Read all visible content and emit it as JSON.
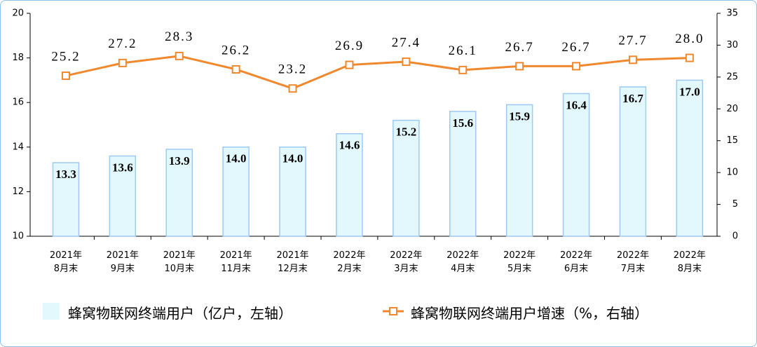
{
  "chart_data": {
    "type": "bar-line",
    "categories": [
      "2021年\n8月末",
      "2021年\n9月末",
      "2021年\n10月末",
      "2021年\n11月末",
      "2021年\n12月末",
      "2022年\n2月末",
      "2022年\n3月末",
      "2022年\n4月末",
      "2022年\n5月末",
      "2022年\n6月末",
      "2022年\n7月末",
      "2022年\n8月末"
    ],
    "series": [
      {
        "name": "蜂窝物联网终端用户（亿户，左轴）",
        "type": "bar",
        "color": "#e3f8fd",
        "edge_color": "#9ec9f2",
        "values": [
          13.3,
          13.6,
          13.9,
          14,
          14,
          14.6,
          15.2,
          15.6,
          15.9,
          16.4,
          16.7,
          17
        ],
        "value_labels": [
          "13.3",
          "13.6",
          "13.9",
          "14.0",
          "14.0",
          "14.6",
          "15.2",
          "15.6",
          "15.9",
          "16.4",
          "16.7",
          "17.0"
        ]
      },
      {
        "name": "蜂窝物联网终端用户增速（%，右轴）",
        "type": "line",
        "axis": "y2",
        "color": "#f0882e",
        "values": [
          25.2,
          27.2,
          28.3,
          26.2,
          23.2,
          26.9,
          27.4,
          26.1,
          26.7,
          26.7,
          27.7,
          28
        ],
        "value_labels": [
          "25.2",
          "27.2",
          "28.3",
          "26.2",
          "23.2",
          "26.9",
          "27.4",
          "26.1",
          "26.7",
          "26.7",
          "27.7",
          "28.0"
        ]
      }
    ],
    "ylim": [
      10,
      20
    ],
    "yticks": [
      10,
      12,
      14,
      16,
      18,
      20
    ],
    "y2lim": [
      0,
      35
    ],
    "y2ticks": [
      0,
      5,
      10,
      15,
      20,
      25,
      30,
      35
    ]
  }
}
